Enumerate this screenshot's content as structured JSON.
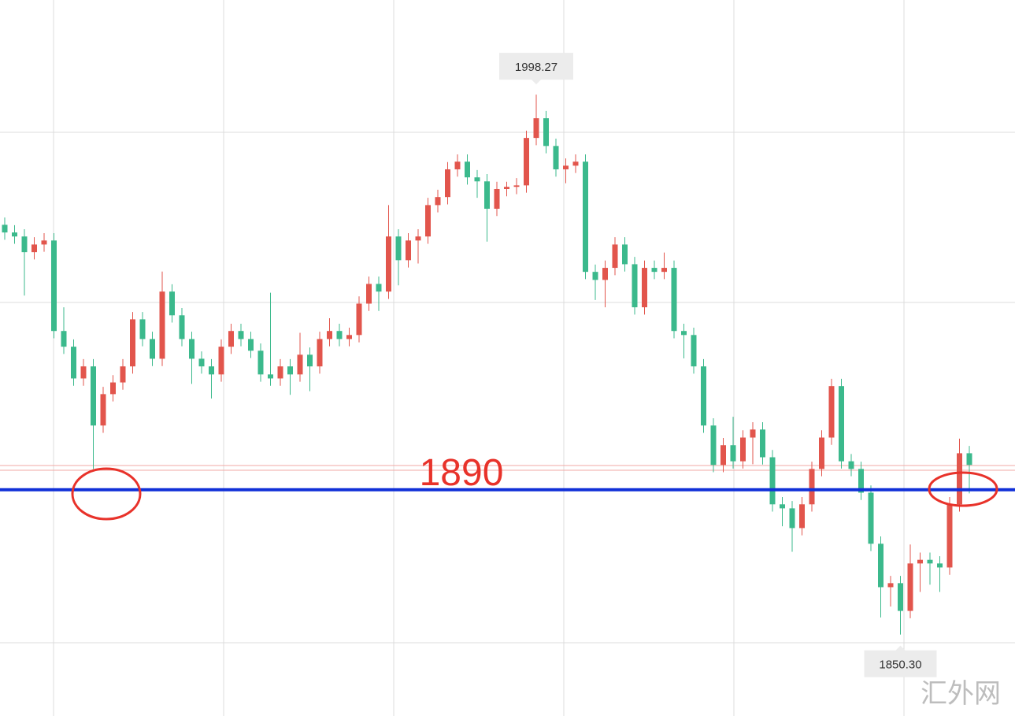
{
  "chart_data": {
    "type": "candlestick",
    "up_color": "#e2554c",
    "down_color": "#3bb98c",
    "ylim": [
      1828,
      2024.2
    ],
    "open": [
      1962.6,
      1960.5,
      1959.4,
      1955.1,
      1957.2,
      1958.3,
      1933.5,
      1929.2,
      1920.5,
      1923.8,
      1907.6,
      1916.2,
      1919.4,
      1923.8,
      1936.7,
      1931.3,
      1925.9,
      1944.3,
      1937.8,
      1931.3,
      1925.9,
      1923.8,
      1921.6,
      1929.2,
      1933.5,
      1931.3,
      1928.1,
      1921.6,
      1920.5,
      1923.8,
      1921.6,
      1927.0,
      1923.8,
      1931.3,
      1933.5,
      1931.3,
      1932.4,
      1941.0,
      1946.4,
      1944.3,
      1959.4,
      1952.9,
      1958.3,
      1959.4,
      1968.0,
      1970.2,
      1977.8,
      1979.9,
      1975.6,
      1974.5,
      1967.0,
      1972.4,
      1973.0,
      1973.4,
      1986.4,
      1991.8,
      1984.2,
      1977.8,
      1978.8,
      1979.9,
      1949.7,
      1947.5,
      1950.8,
      1957.2,
      1951.8,
      1940.0,
      1950.8,
      1949.7,
      1950.8,
      1933.5,
      1932.4,
      1923.8,
      1907.6,
      1896.8,
      1902.2,
      1897.8,
      1904.3,
      1906.5,
      1898.9,
      1886.0,
      1884.9,
      1879.5,
      1886.0,
      1895.7,
      1904.3,
      1918.4,
      1897.8,
      1895.7,
      1889.2,
      1875.2,
      1863.3,
      1864.4,
      1856.8,
      1869.8,
      1870.8,
      1869.8,
      1868.7,
      1886.0,
      1900.0
    ],
    "high": [
      1964.6,
      1962.5,
      1961.4,
      1959.2,
      1960.3,
      1960.3,
      1940.0,
      1931.2,
      1925.8,
      1925.8,
      1918.2,
      1921.4,
      1925.8,
      1938.7,
      1938.7,
      1933.3,
      1949.8,
      1946.3,
      1939.8,
      1933.3,
      1927.9,
      1925.8,
      1931.2,
      1935.5,
      1935.5,
      1933.3,
      1930.1,
      1944.0,
      1925.8,
      1925.8,
      1933.0,
      1929.0,
      1933.3,
      1937.0,
      1935.5,
      1934.4,
      1943.0,
      1948.4,
      1948.4,
      1968.0,
      1961.4,
      1960.3,
      1961.4,
      1970.0,
      1972.2,
      1979.8,
      1981.9,
      1981.9,
      1977.6,
      1976.5,
      1974.4,
      1974.4,
      1975.4,
      1988.4,
      1998.27,
      1993.8,
      1986.2,
      1980.8,
      1981.9,
      1981.9,
      1951.7,
      1952.8,
      1959.2,
      1959.2,
      1953.8,
      1952.8,
      1952.8,
      1955.0,
      1952.8,
      1935.5,
      1934.4,
      1925.8,
      1909.6,
      1904.2,
      1910.0,
      1906.3,
      1908.5,
      1908.5,
      1900.9,
      1888.0,
      1886.9,
      1888.0,
      1897.7,
      1906.3,
      1920.4,
      1920.4,
      1899.8,
      1897.7,
      1891.2,
      1877.2,
      1866.4,
      1866.4,
      1875.0,
      1872.8,
      1872.8,
      1871.8,
      1888.0,
      1904.0,
      1902.0
    ],
    "low": [
      1958.5,
      1957.4,
      1943.2,
      1953.1,
      1955.2,
      1931.5,
      1927.2,
      1918.5,
      1918.5,
      1895.7,
      1905.6,
      1914.2,
      1917.4,
      1921.8,
      1929.3,
      1923.9,
      1923.9,
      1935.8,
      1929.3,
      1919.0,
      1921.8,
      1915.0,
      1919.6,
      1927.2,
      1929.3,
      1926.1,
      1919.6,
      1918.5,
      1918.5,
      1916.0,
      1919.6,
      1917.0,
      1921.8,
      1929.3,
      1929.3,
      1929.3,
      1930.4,
      1939.0,
      1939.0,
      1942.3,
      1946.0,
      1950.9,
      1952.0,
      1957.4,
      1966.0,
      1968.2,
      1975.8,
      1973.6,
      1970.0,
      1958.0,
      1965.0,
      1970.4,
      1971.0,
      1971.4,
      1984.4,
      1982.2,
      1975.8,
      1974.0,
      1976.8,
      1947.7,
      1942.0,
      1940.0,
      1948.8,
      1949.8,
      1938.0,
      1938.0,
      1947.7,
      1947.7,
      1931.5,
      1926.0,
      1921.8,
      1905.6,
      1894.8,
      1894.8,
      1895.8,
      1895.8,
      1897.0,
      1896.9,
      1884.0,
      1880.0,
      1873.0,
      1877.5,
      1884.0,
      1893.7,
      1902.3,
      1895.8,
      1893.7,
      1887.2,
      1873.2,
      1855.0,
      1858.0,
      1850.3,
      1854.8,
      1862.0,
      1864.0,
      1862.0,
      1866.7,
      1884.0,
      1889.0
    ],
    "close": [
      1960.5,
      1959.4,
      1955.1,
      1957.2,
      1958.3,
      1933.5,
      1929.2,
      1920.5,
      1923.8,
      1907.6,
      1916.2,
      1919.4,
      1923.8,
      1936.7,
      1931.3,
      1925.9,
      1944.3,
      1937.8,
      1931.3,
      1925.9,
      1923.8,
      1921.6,
      1929.2,
      1933.5,
      1931.3,
      1928.1,
      1921.6,
      1920.5,
      1923.8,
      1921.6,
      1927.0,
      1923.8,
      1931.3,
      1933.5,
      1931.3,
      1932.4,
      1941.0,
      1946.4,
      1944.3,
      1959.4,
      1952.9,
      1958.3,
      1959.4,
      1968.0,
      1970.2,
      1977.8,
      1979.9,
      1975.6,
      1974.5,
      1967.0,
      1972.4,
      1973.0,
      1973.4,
      1986.4,
      1991.8,
      1984.2,
      1977.8,
      1978.8,
      1979.9,
      1949.7,
      1947.5,
      1950.8,
      1957.2,
      1951.8,
      1940.0,
      1950.8,
      1949.7,
      1950.8,
      1933.5,
      1932.4,
      1923.8,
      1907.6,
      1896.8,
      1902.2,
      1897.8,
      1904.3,
      1906.5,
      1898.9,
      1886.0,
      1884.9,
      1879.5,
      1886.0,
      1895.7,
      1904.3,
      1918.4,
      1897.8,
      1895.7,
      1889.2,
      1875.2,
      1863.3,
      1864.4,
      1856.8,
      1869.8,
      1870.8,
      1869.8,
      1868.7,
      1886.0,
      1900.0,
      1896.8
    ],
    "max_label": "1998.27",
    "min_label": "1850.30",
    "level": 1890,
    "level_color": "#1030d8",
    "watermark": "汇外网"
  }
}
